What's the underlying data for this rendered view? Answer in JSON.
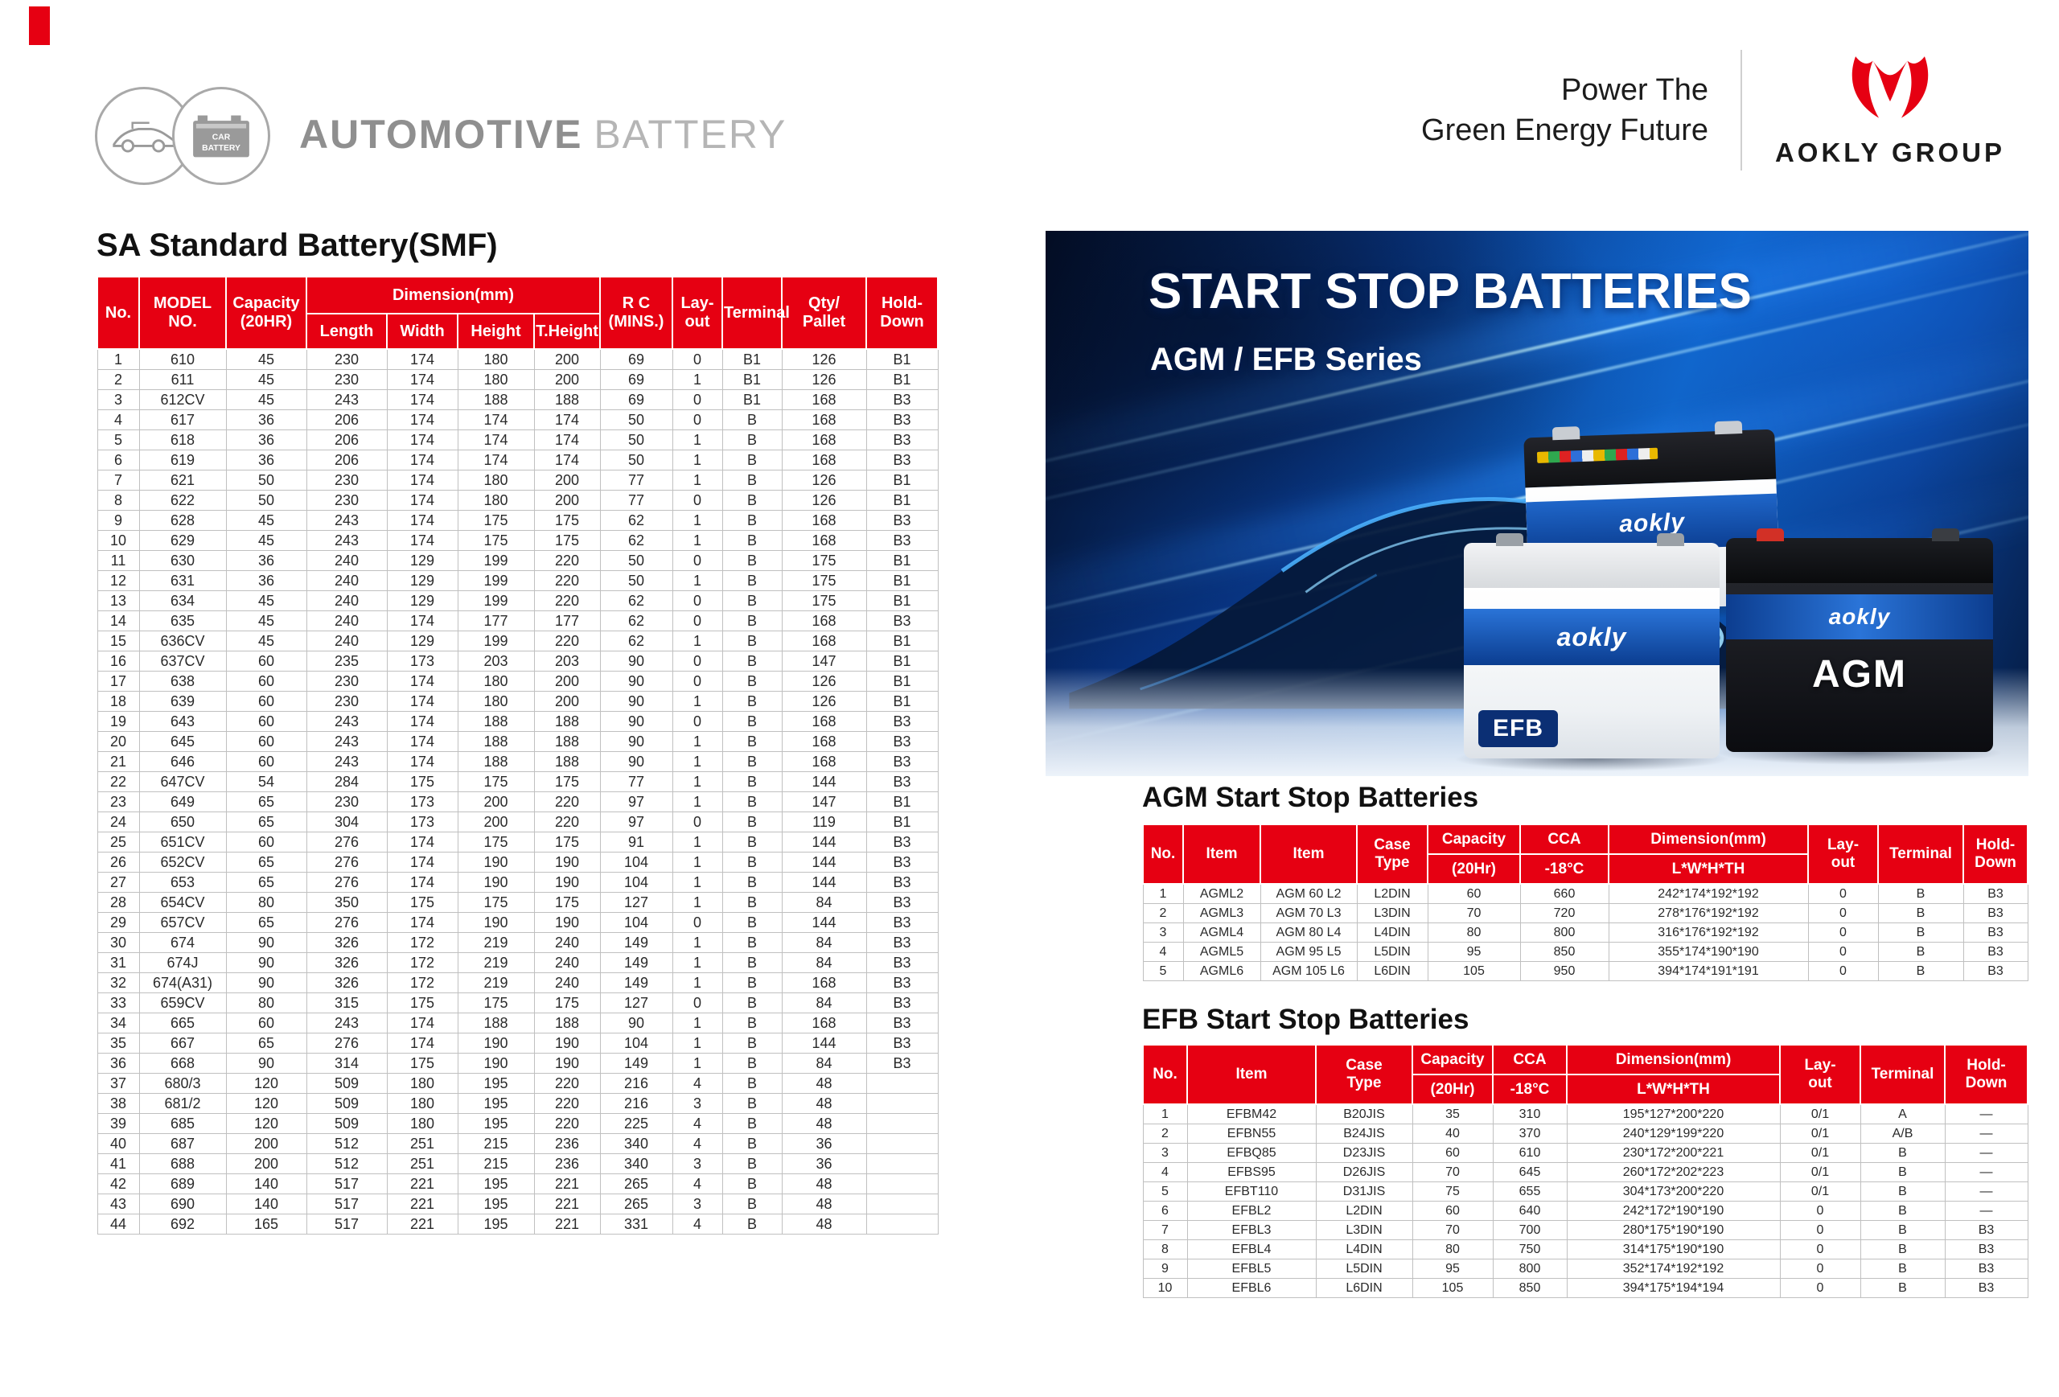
{
  "colors": {
    "accent_red": "#e60012",
    "hero_blue": "#0f63c4"
  },
  "header": {
    "brand_bold": "AUTOMOTIVE",
    "brand_light": "BATTERY",
    "badge_line1": "CAR",
    "badge_line2": "BATTERY",
    "tagline_line1": "Power The",
    "tagline_line2": "Green Energy Future",
    "logo_text": "AOKLY GROUP"
  },
  "sa_table": {
    "title": "SA Standard Battery(SMF)",
    "headers": {
      "no": "No.",
      "model_1": "MODEL",
      "model_2": "NO.",
      "cap_1": "Capacity",
      "cap_2": "(20HR)",
      "dimension": "Dimension(mm)",
      "length": "Length",
      "width": "Width",
      "height": "Height",
      "t_height": "T.Height",
      "rc_1": "R C",
      "rc_2": "(MINS.)",
      "lay_1": "Lay-",
      "lay_2": "out",
      "terminal": "Terminal",
      "qty_1": "Qty/",
      "qty_2": "Pallet",
      "hold_1": "Hold-",
      "hold_2": "Down"
    },
    "rows": [
      [
        "1",
        "610",
        "45",
        "230",
        "174",
        "180",
        "200",
        "69",
        "0",
        "B1",
        "126",
        "B1"
      ],
      [
        "2",
        "611",
        "45",
        "230",
        "174",
        "180",
        "200",
        "69",
        "1",
        "B1",
        "126",
        "B1"
      ],
      [
        "3",
        "612CV",
        "45",
        "243",
        "174",
        "188",
        "188",
        "69",
        "0",
        "B1",
        "168",
        "B3"
      ],
      [
        "4",
        "617",
        "36",
        "206",
        "174",
        "174",
        "174",
        "50",
        "0",
        "B",
        "168",
        "B3"
      ],
      [
        "5",
        "618",
        "36",
        "206",
        "174",
        "174",
        "174",
        "50",
        "1",
        "B",
        "168",
        "B3"
      ],
      [
        "6",
        "619",
        "36",
        "206",
        "174",
        "174",
        "174",
        "50",
        "1",
        "B",
        "168",
        "B3"
      ],
      [
        "7",
        "621",
        "50",
        "230",
        "174",
        "180",
        "200",
        "77",
        "1",
        "B",
        "126",
        "B1"
      ],
      [
        "8",
        "622",
        "50",
        "230",
        "174",
        "180",
        "200",
        "77",
        "0",
        "B",
        "126",
        "B1"
      ],
      [
        "9",
        "628",
        "45",
        "243",
        "174",
        "175",
        "175",
        "62",
        "1",
        "B",
        "168",
        "B3"
      ],
      [
        "10",
        "629",
        "45",
        "243",
        "174",
        "175",
        "175",
        "62",
        "1",
        "B",
        "168",
        "B3"
      ],
      [
        "11",
        "630",
        "36",
        "240",
        "129",
        "199",
        "220",
        "50",
        "0",
        "B",
        "175",
        "B1"
      ],
      [
        "12",
        "631",
        "36",
        "240",
        "129",
        "199",
        "220",
        "50",
        "1",
        "B",
        "175",
        "B1"
      ],
      [
        "13",
        "634",
        "45",
        "240",
        "129",
        "199",
        "220",
        "62",
        "0",
        "B",
        "175",
        "B1"
      ],
      [
        "14",
        "635",
        "45",
        "240",
        "174",
        "177",
        "177",
        "62",
        "0",
        "B",
        "168",
        "B3"
      ],
      [
        "15",
        "636CV",
        "45",
        "240",
        "129",
        "199",
        "220",
        "62",
        "1",
        "B",
        "168",
        "B1"
      ],
      [
        "16",
        "637CV",
        "60",
        "235",
        "173",
        "203",
        "203",
        "90",
        "0",
        "B",
        "147",
        "B1"
      ],
      [
        "17",
        "638",
        "60",
        "230",
        "174",
        "180",
        "200",
        "90",
        "0",
        "B",
        "126",
        "B1"
      ],
      [
        "18",
        "639",
        "60",
        "230",
        "174",
        "180",
        "200",
        "90",
        "1",
        "B",
        "126",
        "B1"
      ],
      [
        "19",
        "643",
        "60",
        "243",
        "174",
        "188",
        "188",
        "90",
        "0",
        "B",
        "168",
        "B3"
      ],
      [
        "20",
        "645",
        "60",
        "243",
        "174",
        "188",
        "188",
        "90",
        "1",
        "B",
        "168",
        "B3"
      ],
      [
        "21",
        "646",
        "60",
        "243",
        "174",
        "188",
        "188",
        "90",
        "1",
        "B",
        "168",
        "B3"
      ],
      [
        "22",
        "647CV",
        "54",
        "284",
        "175",
        "175",
        "175",
        "77",
        "1",
        "B",
        "144",
        "B3"
      ],
      [
        "23",
        "649",
        "65",
        "230",
        "173",
        "200",
        "220",
        "97",
        "1",
        "B",
        "147",
        "B1"
      ],
      [
        "24",
        "650",
        "65",
        "304",
        "173",
        "200",
        "220",
        "97",
        "0",
        "B",
        "119",
        "B1"
      ],
      [
        "25",
        "651CV",
        "60",
        "276",
        "174",
        "175",
        "175",
        "91",
        "1",
        "B",
        "144",
        "B3"
      ],
      [
        "26",
        "652CV",
        "65",
        "276",
        "174",
        "190",
        "190",
        "104",
        "1",
        "B",
        "144",
        "B3"
      ],
      [
        "27",
        "653",
        "65",
        "276",
        "174",
        "190",
        "190",
        "104",
        "1",
        "B",
        "144",
        "B3"
      ],
      [
        "28",
        "654CV",
        "80",
        "350",
        "175",
        "175",
        "175",
        "127",
        "1",
        "B",
        "84",
        "B3"
      ],
      [
        "29",
        "657CV",
        "65",
        "276",
        "174",
        "190",
        "190",
        "104",
        "0",
        "B",
        "144",
        "B3"
      ],
      [
        "30",
        "674",
        "90",
        "326",
        "172",
        "219",
        "240",
        "149",
        "1",
        "B",
        "84",
        "B3"
      ],
      [
        "31",
        "674J",
        "90",
        "326",
        "172",
        "219",
        "240",
        "149",
        "1",
        "B",
        "84",
        "B3"
      ],
      [
        "32",
        "674(A31)",
        "90",
        "326",
        "172",
        "219",
        "240",
        "149",
        "1",
        "B",
        "168",
        "B3"
      ],
      [
        "33",
        "659CV",
        "80",
        "315",
        "175",
        "175",
        "175",
        "127",
        "0",
        "B",
        "84",
        "B3"
      ],
      [
        "34",
        "665",
        "60",
        "243",
        "174",
        "188",
        "188",
        "90",
        "1",
        "B",
        "168",
        "B3"
      ],
      [
        "35",
        "667",
        "65",
        "276",
        "174",
        "190",
        "190",
        "104",
        "1",
        "B",
        "144",
        "B3"
      ],
      [
        "36",
        "668",
        "90",
        "314",
        "175",
        "190",
        "190",
        "149",
        "1",
        "B",
        "84",
        "B3"
      ],
      [
        "37",
        "680/3",
        "120",
        "509",
        "180",
        "195",
        "220",
        "216",
        "4",
        "B",
        "48",
        ""
      ],
      [
        "38",
        "681/2",
        "120",
        "509",
        "180",
        "195",
        "220",
        "216",
        "3",
        "B",
        "48",
        ""
      ],
      [
        "39",
        "685",
        "120",
        "509",
        "180",
        "195",
        "220",
        "225",
        "4",
        "B",
        "48",
        ""
      ],
      [
        "40",
        "687",
        "200",
        "512",
        "251",
        "215",
        "236",
        "340",
        "4",
        "B",
        "36",
        ""
      ],
      [
        "41",
        "688",
        "200",
        "512",
        "251",
        "215",
        "236",
        "340",
        "3",
        "B",
        "36",
        ""
      ],
      [
        "42",
        "689",
        "140",
        "517",
        "221",
        "195",
        "221",
        "265",
        "4",
        "B",
        "48",
        ""
      ],
      [
        "43",
        "690",
        "140",
        "517",
        "221",
        "195",
        "221",
        "265",
        "3",
        "B",
        "48",
        ""
      ],
      [
        "44",
        "692",
        "165",
        "517",
        "221",
        "195",
        "221",
        "331",
        "4",
        "B",
        "48",
        ""
      ]
    ]
  },
  "hero": {
    "title": "START STOP BATTERIES",
    "subtitle": "AGM / EFB Series",
    "batteries": [
      {
        "brand": "aokly"
      },
      {
        "brand": "aokly",
        "type_label": "EFB"
      },
      {
        "brand": "aokly",
        "type_label": "AGM"
      }
    ]
  },
  "agm_table": {
    "title": "AGM Start Stop Batteries",
    "headers": {
      "no": "No.",
      "item1": "Item",
      "item2": "Item",
      "case_1": "Case",
      "case_2": "Type",
      "cap": "Capacity",
      "cap_sub": "(20Hr)",
      "cca": "CCA",
      "cca_sub": "-18°C",
      "dim": "Dimension(mm)",
      "dim_sub": "L*W*H*TH",
      "lay_1": "Lay-",
      "lay_2": "out",
      "terminal": "Terminal",
      "hold_1": "Hold-",
      "hold_2": "Down"
    },
    "rows": [
      [
        "1",
        "AGML2",
        "AGM 60 L2",
        "L2DIN",
        "60",
        "660",
        "242*174*192*192",
        "0",
        "B",
        "B3"
      ],
      [
        "2",
        "AGML3",
        "AGM 70 L3",
        "L3DIN",
        "70",
        "720",
        "278*176*192*192",
        "0",
        "B",
        "B3"
      ],
      [
        "3",
        "AGML4",
        "AGM 80 L4",
        "L4DIN",
        "80",
        "800",
        "316*176*192*192",
        "0",
        "B",
        "B3"
      ],
      [
        "4",
        "AGML5",
        "AGM 95 L5",
        "L5DIN",
        "95",
        "850",
        "355*174*190*190",
        "0",
        "B",
        "B3"
      ],
      [
        "5",
        "AGML6",
        "AGM 105 L6",
        "L6DIN",
        "105",
        "950",
        "394*174*191*191",
        "0",
        "B",
        "B3"
      ]
    ]
  },
  "efb_table": {
    "title": "EFB Start Stop Batteries",
    "headers": {
      "no": "No.",
      "item": "Item",
      "case_1": "Case",
      "case_2": "Type",
      "cap": "Capacity",
      "cap_sub": "(20Hr)",
      "cca": "CCA",
      "cca_sub": "-18°C",
      "dim": "Dimension(mm)",
      "dim_sub": "L*W*H*TH",
      "lay_1": "Lay-",
      "lay_2": "out",
      "terminal": "Terminal",
      "hold_1": "Hold-",
      "hold_2": "Down"
    },
    "rows": [
      [
        "1",
        "EFBM42",
        "B20JIS",
        "35",
        "310",
        "195*127*200*220",
        "0/1",
        "A",
        "—"
      ],
      [
        "2",
        "EFBN55",
        "B24JIS",
        "40",
        "370",
        "240*129*199*220",
        "0/1",
        "A/B",
        "—"
      ],
      [
        "3",
        "EFBQ85",
        "D23JIS",
        "60",
        "610",
        "230*172*200*221",
        "0/1",
        "B",
        "—"
      ],
      [
        "4",
        "EFBS95",
        "D26JIS",
        "70",
        "645",
        "260*172*202*223",
        "0/1",
        "B",
        "—"
      ],
      [
        "5",
        "EFBT110",
        "D31JIS",
        "75",
        "655",
        "304*173*200*220",
        "0/1",
        "B",
        "—"
      ],
      [
        "6",
        "EFBL2",
        "L2DIN",
        "60",
        "640",
        "242*172*190*190",
        "0",
        "B",
        "—"
      ],
      [
        "7",
        "EFBL3",
        "L3DIN",
        "70",
        "700",
        "280*175*190*190",
        "0",
        "B",
        "B3"
      ],
      [
        "8",
        "EFBL4",
        "L4DIN",
        "80",
        "750",
        "314*175*190*190",
        "0",
        "B",
        "B3"
      ],
      [
        "9",
        "EFBL5",
        "L5DIN",
        "95",
        "800",
        "352*174*192*192",
        "0",
        "B",
        "B3"
      ],
      [
        "10",
        "EFBL6",
        "L6DIN",
        "105",
        "850",
        "394*175*194*194",
        "0",
        "B",
        "B3"
      ]
    ]
  }
}
